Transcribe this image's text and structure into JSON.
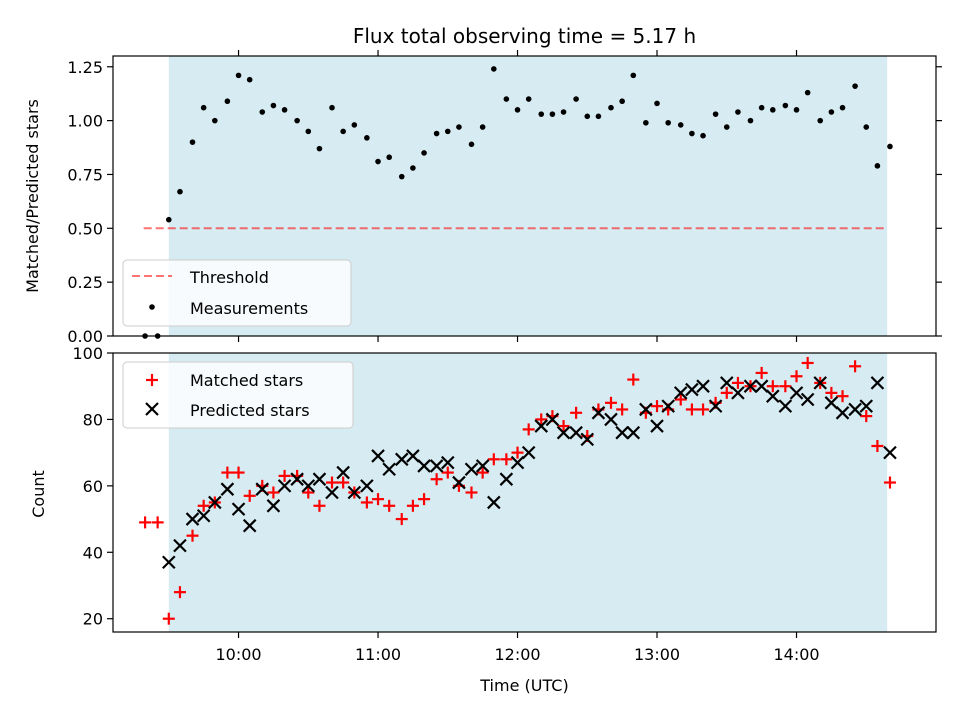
{
  "chart_data": {
    "title": "Flux total observing time = 5.17 h",
    "xlabel": "Time (UTC)",
    "x_tick_labels": [
      "10:00",
      "11:00",
      "12:00",
      "13:00",
      "14:00"
    ],
    "x_ticks_hours": [
      10,
      11,
      12,
      13,
      14
    ],
    "xlim_hours": [
      9.1,
      15.0
    ],
    "shaded_span_hours": [
      9.5,
      14.65
    ],
    "colors": {
      "shade": "#add8e6",
      "threshold": "#ff0000",
      "measurements": "#000000",
      "matched": "#ff0000",
      "predicted": "#000000"
    },
    "panels": [
      {
        "type": "scatter",
        "ylabel": "Matched/Predicted stars",
        "ylim": [
          0.0,
          1.3
        ],
        "y_tick_labels": [
          "0.00",
          "0.25",
          "0.50",
          "0.75",
          "1.00",
          "1.25"
        ],
        "y_ticks": [
          0.0,
          0.25,
          0.5,
          0.75,
          1.0,
          1.25
        ],
        "legend_position": "lower-left",
        "threshold": {
          "name": "Threshold",
          "value": 0.5,
          "x_range_hours": [
            9.32,
            14.65
          ]
        },
        "series": [
          {
            "name": "Measurements",
            "x_hours": [
              9.33,
              9.42,
              9.5,
              9.58,
              9.67,
              9.75,
              9.83,
              9.92,
              10.0,
              10.08,
              10.17,
              10.25,
              10.33,
              10.42,
              10.5,
              10.58,
              10.67,
              10.75,
              10.83,
              10.92,
              11.0,
              11.08,
              11.17,
              11.25,
              11.33,
              11.42,
              11.5,
              11.58,
              11.67,
              11.75,
              11.83,
              11.92,
              12.0,
              12.08,
              12.17,
              12.25,
              12.33,
              12.42,
              12.5,
              12.58,
              12.67,
              12.75,
              12.83,
              12.92,
              13.0,
              13.08,
              13.17,
              13.25,
              13.33,
              13.42,
              13.5,
              13.58,
              13.67,
              13.75,
              13.83,
              13.92,
              14.0,
              14.08,
              14.17,
              14.25,
              14.33,
              14.42,
              14.5,
              14.58,
              14.67
            ],
            "y": [
              0.0,
              0.0,
              0.54,
              0.67,
              0.9,
              1.06,
              1.0,
              1.09,
              1.21,
              1.19,
              1.04,
              1.07,
              1.05,
              1.0,
              0.95,
              0.87,
              1.06,
              0.95,
              0.98,
              0.92,
              0.81,
              0.83,
              0.74,
              0.78,
              0.85,
              0.94,
              0.95,
              0.97,
              0.89,
              0.97,
              1.24,
              1.1,
              1.05,
              1.1,
              1.03,
              1.03,
              1.04,
              1.1,
              1.02,
              1.02,
              1.06,
              1.09,
              1.21,
              0.99,
              1.08,
              0.99,
              0.98,
              0.94,
              0.93,
              1.03,
              0.97,
              1.04,
              1.0,
              1.06,
              1.05,
              1.07,
              1.05,
              1.13,
              1.0,
              1.04,
              1.06,
              1.16,
              0.97,
              0.79,
              0.88
            ]
          }
        ]
      },
      {
        "type": "scatter",
        "ylabel": "Count",
        "ylim": [
          16,
          100
        ],
        "y_tick_labels": [
          "20",
          "40",
          "60",
          "80",
          "100"
        ],
        "y_ticks": [
          20,
          40,
          60,
          80,
          100
        ],
        "legend_position": "upper-left",
        "series": [
          {
            "name": "Matched stars",
            "marker": "plus",
            "x_hours": [
              9.33,
              9.42,
              9.5,
              9.58,
              9.67,
              9.75,
              9.83,
              9.92,
              10.0,
              10.08,
              10.17,
              10.25,
              10.33,
              10.42,
              10.5,
              10.58,
              10.67,
              10.75,
              10.83,
              10.92,
              11.0,
              11.08,
              11.17,
              11.25,
              11.33,
              11.42,
              11.5,
              11.58,
              11.67,
              11.75,
              11.83,
              11.92,
              12.0,
              12.08,
              12.17,
              12.25,
              12.33,
              12.42,
              12.5,
              12.58,
              12.67,
              12.75,
              12.83,
              12.92,
              13.0,
              13.08,
              13.17,
              13.25,
              13.33,
              13.42,
              13.5,
              13.58,
              13.67,
              13.75,
              13.83,
              13.92,
              14.0,
              14.08,
              14.17,
              14.25,
              14.33,
              14.42,
              14.5,
              14.58,
              14.67
            ],
            "y": [
              49,
              49,
              20,
              28,
              45,
              54,
              55,
              64,
              64,
              57,
              60,
              58,
              63,
              63,
              58,
              54,
              61,
              61,
              58,
              55,
              56,
              54,
              50,
              54,
              56,
              62,
              64,
              60,
              58,
              64,
              68,
              68,
              70,
              77,
              80,
              81,
              78,
              82,
              75,
              83,
              85,
              83,
              92,
              82,
              84,
              83,
              86,
              83,
              83,
              85,
              88,
              91,
              90,
              94,
              90,
              90,
              93,
              97,
              91,
              88,
              87,
              96,
              81,
              72,
              61
            ]
          },
          {
            "name": "Predicted stars",
            "marker": "x",
            "x_hours": [
              9.5,
              9.58,
              9.67,
              9.75,
              9.83,
              9.92,
              10.0,
              10.08,
              10.17,
              10.25,
              10.33,
              10.42,
              10.5,
              10.58,
              10.67,
              10.75,
              10.83,
              10.92,
              11.0,
              11.08,
              11.17,
              11.25,
              11.33,
              11.42,
              11.5,
              11.58,
              11.67,
              11.75,
              11.83,
              11.92,
              12.0,
              12.08,
              12.17,
              12.25,
              12.33,
              12.42,
              12.5,
              12.58,
              12.67,
              12.75,
              12.83,
              12.92,
              13.0,
              13.08,
              13.17,
              13.25,
              13.33,
              13.42,
              13.5,
              13.58,
              13.67,
              13.75,
              13.83,
              13.92,
              14.0,
              14.08,
              14.17,
              14.25,
              14.33,
              14.42,
              14.5,
              14.58,
              14.67
            ],
            "y": [
              37,
              42,
              50,
              51,
              55,
              59,
              53,
              48,
              59,
              54,
              60,
              62,
              60,
              62,
              58,
              64,
              58,
              60,
              69,
              65,
              68,
              69,
              66,
              66,
              67,
              61,
              65,
              66,
              55,
              62,
              67,
              70,
              78,
              80,
              76,
              76,
              74,
              82,
              80,
              76,
              76,
              83,
              78,
              84,
              88,
              89,
              90,
              84,
              91,
              88,
              90,
              90,
              87,
              84,
              88,
              86,
              91,
              85,
              82,
              83,
              84,
              91,
              70
            ]
          }
        ]
      }
    ]
  }
}
